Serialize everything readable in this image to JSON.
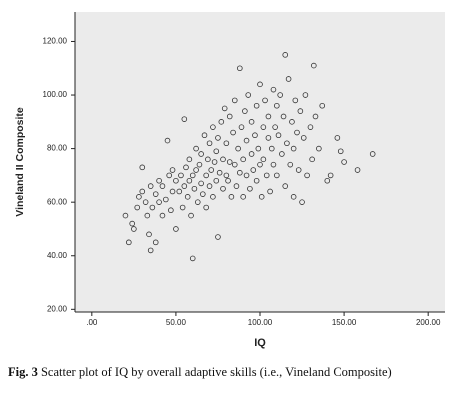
{
  "chart_data": {
    "type": "scatter",
    "x_label": "IQ",
    "y_label": "Vineland II Composite",
    "color": "#333333",
    "x": [
      20,
      22,
      24,
      25,
      27,
      28,
      30,
      30,
      32,
      33,
      34,
      35,
      35,
      36,
      38,
      38,
      40,
      40,
      42,
      42,
      44,
      45,
      46,
      47,
      48,
      48,
      50,
      50,
      52,
      53,
      54,
      55,
      55,
      56,
      57,
      58,
      58,
      59,
      60,
      60,
      61,
      62,
      62,
      63,
      64,
      65,
      65,
      66,
      67,
      68,
      68,
      69,
      70,
      70,
      71,
      72,
      72,
      73,
      74,
      74,
      75,
      75,
      76,
      77,
      78,
      78,
      79,
      80,
      80,
      81,
      82,
      82,
      83,
      84,
      85,
      85,
      86,
      87,
      88,
      88,
      89,
      90,
      90,
      91,
      92,
      92,
      93,
      94,
      95,
      95,
      96,
      97,
      98,
      98,
      99,
      100,
      100,
      101,
      102,
      102,
      103,
      104,
      105,
      105,
      106,
      107,
      108,
      108,
      109,
      110,
      110,
      111,
      112,
      113,
      114,
      115,
      115,
      116,
      117,
      118,
      119,
      120,
      120,
      121,
      122,
      123,
      124,
      125,
      126,
      127,
      128,
      130,
      131,
      132,
      133,
      135,
      137,
      140,
      142,
      146,
      148,
      150,
      158,
      167
    ],
    "y": [
      55,
      45,
      52,
      50,
      58,
      62,
      73,
      64,
      60,
      55,
      48,
      42,
      66,
      58,
      45,
      63,
      60,
      68,
      55,
      66,
      61,
      83,
      70,
      57,
      64,
      72,
      50,
      68,
      64,
      70,
      58,
      91,
      66,
      73,
      62,
      68,
      76,
      55,
      39,
      70,
      65,
      72,
      80,
      60,
      74,
      67,
      78,
      63,
      85,
      70,
      58,
      76,
      66,
      82,
      72,
      62,
      88,
      75,
      68,
      79,
      47,
      84,
      71,
      90,
      65,
      76,
      95,
      70,
      82,
      68,
      75,
      92,
      62,
      86,
      74,
      98,
      66,
      80,
      110,
      71,
      88,
      76,
      62,
      94,
      83,
      70,
      100,
      65,
      78,
      90,
      72,
      85,
      68,
      96,
      80,
      74,
      104,
      62,
      88,
      76,
      98,
      70,
      84,
      92,
      64,
      80,
      102,
      74,
      88,
      96,
      70,
      85,
      100,
      78,
      92,
      115,
      66,
      82,
      106,
      74,
      90,
      80,
      62,
      98,
      86,
      72,
      94,
      60,
      84,
      100,
      70,
      88,
      76,
      111,
      92,
      80,
      96,
      68,
      70,
      84,
      79,
      75,
      72,
      78
    ],
    "xlim": [
      -10,
      210
    ],
    "ylim": [
      19,
      131
    ],
    "xticks": [
      {
        "value": 0,
        "label": ".00"
      },
      {
        "value": 50,
        "label": "50.00"
      },
      {
        "value": 100,
        "label": "100.00"
      },
      {
        "value": 150,
        "label": "150.00"
      },
      {
        "value": 200,
        "label": "200.00"
      }
    ],
    "yticks": [
      {
        "value": 20,
        "label": "20.00"
      },
      {
        "value": 40,
        "label": "40.00"
      },
      {
        "value": 60,
        "label": "60.00"
      },
      {
        "value": 80,
        "label": "80.00"
      },
      {
        "value": 100,
        "label": "100.00"
      },
      {
        "value": 120,
        "label": "120.00"
      }
    ]
  },
  "caption": {
    "label": "Fig. 3",
    "text": "Scatter plot of IQ by overall adaptive skills (i.e., Vineland Composite)"
  }
}
